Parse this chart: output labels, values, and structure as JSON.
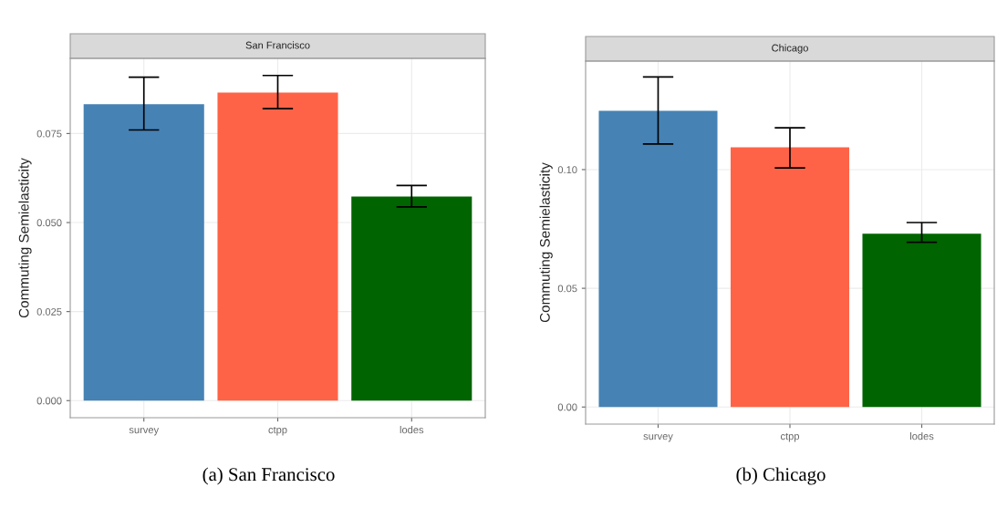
{
  "chart_data": [
    {
      "type": "bar",
      "title": "San Francisco",
      "ylabel": "Commuting Semielasticity",
      "categories": [
        "survey",
        "ctpp",
        "lodes"
      ],
      "values": [
        0.0832,
        0.0865,
        0.0573
      ],
      "colors": [
        "#4682b4",
        "#ff6347",
        "#006400"
      ],
      "errors": [
        [
          0.076,
          0.0908
        ],
        [
          0.082,
          0.0913
        ],
        [
          0.0544,
          0.0604
        ]
      ],
      "ylim": [
        -0.0048,
        0.0961
      ],
      "yticks": [
        {
          "value": 0,
          "label": "0.000"
        },
        {
          "value": 0.025,
          "label": "0.025"
        },
        {
          "value": 0.05,
          "label": "0.050"
        },
        {
          "value": 0.075,
          "label": "0.075"
        }
      ],
      "grid": true,
      "annotations": [
        "(a) San Francisco"
      ]
    },
    {
      "type": "bar",
      "title": "Chicago",
      "ylabel": "Commuting Semielasticity",
      "categories": [
        "survey",
        "ctpp",
        "lodes"
      ],
      "values": [
        0.1248,
        0.1094,
        0.073
      ],
      "colors": [
        "#4682b4",
        "#ff6347",
        "#006400"
      ],
      "errors": [
        [
          0.1108,
          0.139
        ],
        [
          0.1007,
          0.1176
        ],
        [
          0.0694,
          0.0777
        ]
      ],
      "ylim": [
        -0.0072,
        0.1457
      ],
      "yticks": [
        {
          "value": 0,
          "label": "0.00"
        },
        {
          "value": 0.05,
          "label": "0.05"
        },
        {
          "value": 0.1,
          "label": "0.10"
        }
      ],
      "grid": true,
      "annotations": [
        "(b) Chicago"
      ]
    }
  ]
}
